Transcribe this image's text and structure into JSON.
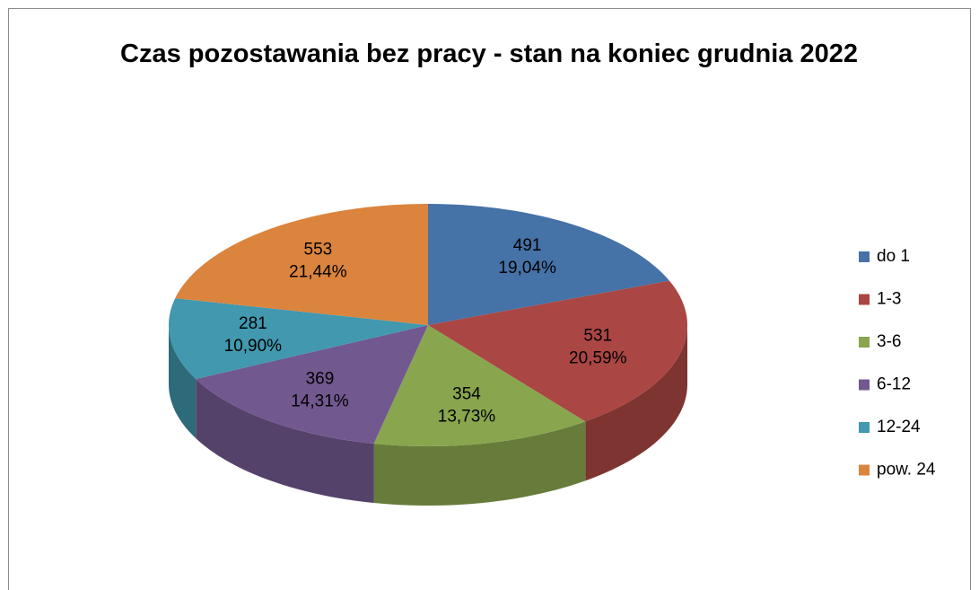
{
  "chart_data": {
    "type": "pie3d",
    "title": "Czas pozostawania bez pracy - stan na koniec grudnia 2022",
    "categories": [
      "do 1",
      "1-3",
      "3-6",
      "6-12",
      "12-24",
      "pow. 24"
    ],
    "values": [
      491,
      531,
      354,
      369,
      281,
      553
    ],
    "percent_labels": [
      "19,04%",
      "20,59%",
      "13,73%",
      "14,31%",
      "10,90%",
      "21,44%"
    ],
    "colors": [
      "#4572a7",
      "#aa4643",
      "#89a54e",
      "#71588f",
      "#4198af",
      "#db843d"
    ],
    "legend": "right"
  }
}
